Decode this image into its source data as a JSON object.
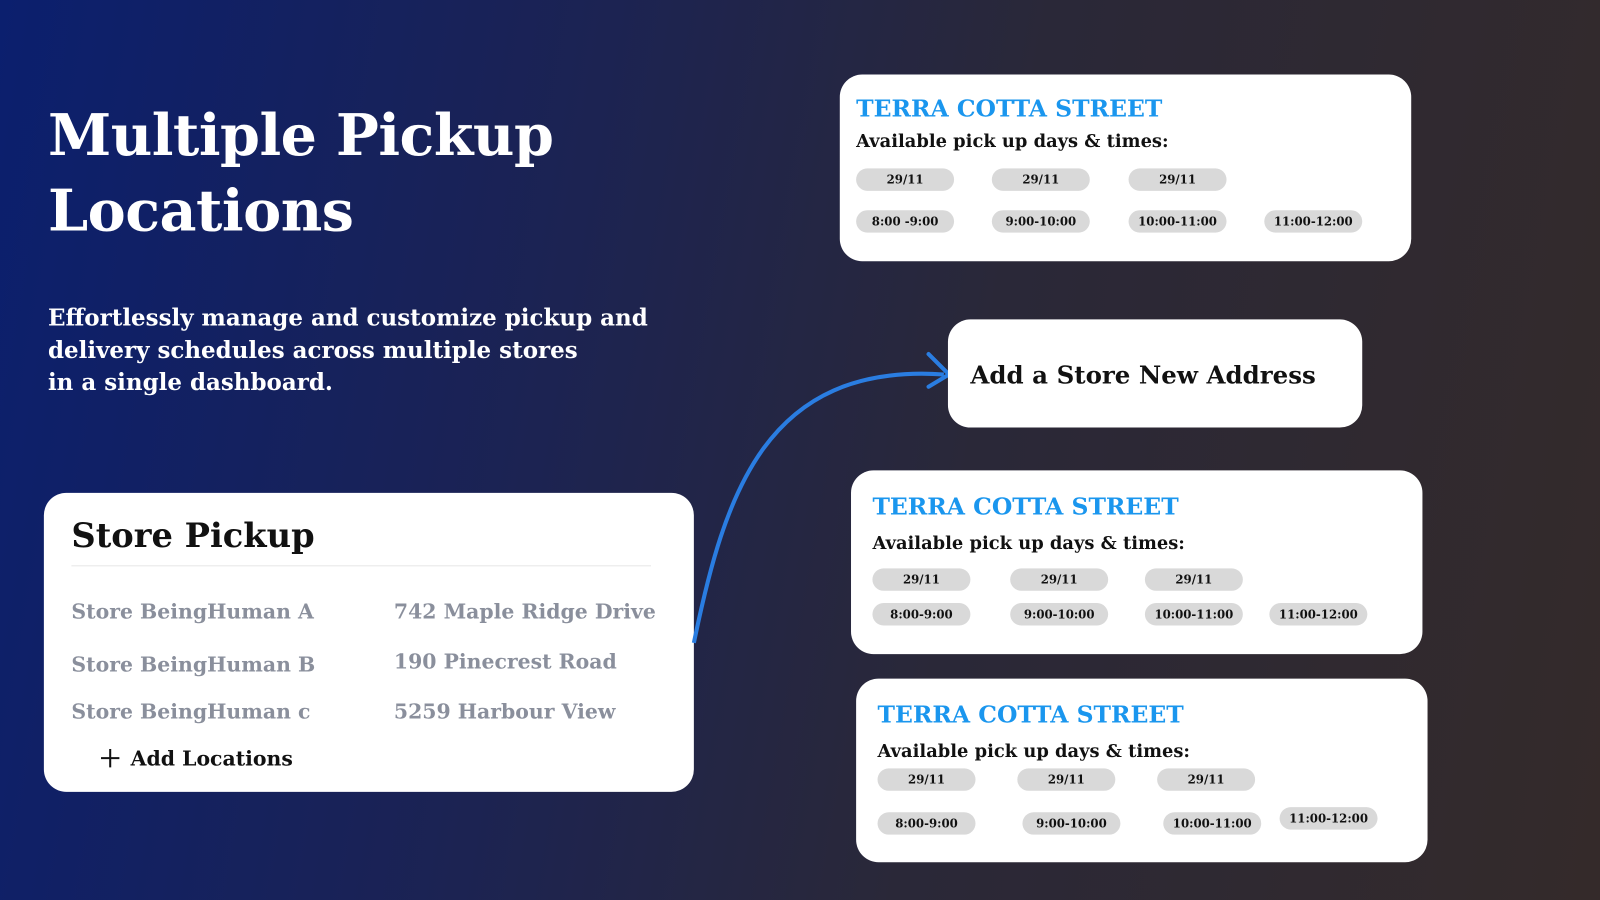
{
  "hero": {
    "title_line1": "Multiple Pickup",
    "title_line2": "Locations",
    "subtitle": "Effortlessly manage and customize pickup and\ndelivery schedules across multiple stores\nin a single dashboard."
  },
  "store_pickup": {
    "title": "Store Pickup",
    "stores": [
      {
        "name": "Store BeingHuman A",
        "address": "742 Maple Ridge Drive"
      },
      {
        "name": "Store BeingHuman B",
        "address": "190 Pinecrest Road"
      },
      {
        "name": "Store BeingHuman c",
        "address": "5259 Harbour View"
      }
    ],
    "add_label": "Add Locations",
    "add_icon": "plus-icon"
  },
  "add_store": {
    "label": "Add a Store New Address"
  },
  "location_cards": [
    {
      "title": "TERRA COTTA STREET",
      "subtitle": "Available pick up days & times:",
      "dates": [
        "29/11",
        "29/11",
        "29/11"
      ],
      "times": [
        "8:00 -9:00",
        "9:00-10:00",
        "10:00-11:00",
        "11:00-12:00"
      ]
    },
    {
      "title": "TERRA COTTA STREET",
      "subtitle": "Available pick up days & times:",
      "dates": [
        "29/11",
        "29/11",
        "29/11"
      ],
      "times": [
        "8:00-9:00",
        "9:00-10:00",
        "10:00-11:00",
        "11:00-12:00"
      ]
    },
    {
      "title": "TERRA COTTA STREET",
      "subtitle": "Available pick up days & times:",
      "dates": [
        "29/11",
        "29/11",
        "29/11"
      ],
      "times": [
        "8:00-9:00",
        "9:00-10:00",
        "10:00-11:00",
        "11:00-12:00"
      ]
    }
  ],
  "colors": {
    "accent": "#1a96ee",
    "arrow": "#2a7de1",
    "muted_text": "#8a8f9c",
    "pill": "#d9d9d9"
  }
}
